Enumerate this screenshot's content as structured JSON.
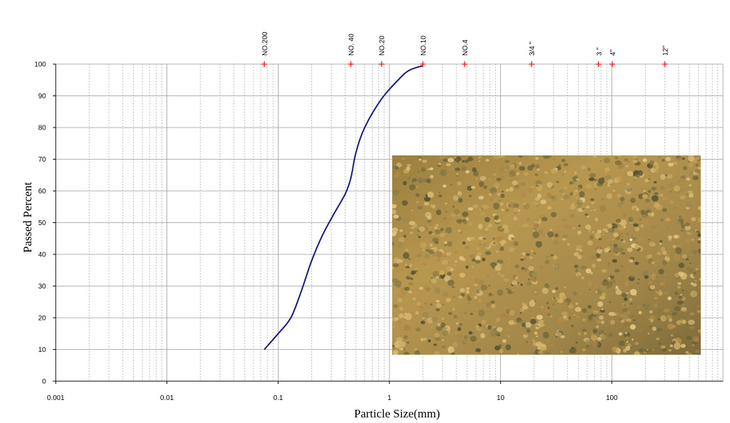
{
  "chart_data": {
    "type": "line",
    "title": "",
    "xlabel": "Particle Size(mm)",
    "ylabel": "Passed Percent",
    "x_scale": "log",
    "xlim": [
      0.001,
      1000
    ],
    "ylim": [
      0,
      100
    ],
    "x_ticks": [
      {
        "value": 0.001,
        "label": "0.001"
      },
      {
        "value": 0.01,
        "label": "0.01"
      },
      {
        "value": 0.1,
        "label": "0.1"
      },
      {
        "value": 1,
        "label": "1"
      },
      {
        "value": 10,
        "label": "10"
      },
      {
        "value": 100,
        "label": "100"
      }
    ],
    "y_ticks": [
      0,
      10,
      20,
      30,
      40,
      50,
      60,
      70,
      80,
      90,
      100
    ],
    "grid": true,
    "series": [
      {
        "color": "#1a1a80",
        "points": [
          {
            "x": 0.075,
            "y": 10
          },
          {
            "x": 0.1,
            "y": 15
          },
          {
            "x": 0.13,
            "y": 20
          },
          {
            "x": 0.16,
            "y": 28
          },
          {
            "x": 0.2,
            "y": 38
          },
          {
            "x": 0.25,
            "y": 46
          },
          {
            "x": 0.32,
            "y": 53
          },
          {
            "x": 0.4,
            "y": 59
          },
          {
            "x": 0.45,
            "y": 64
          },
          {
            "x": 0.5,
            "y": 72
          },
          {
            "x": 0.6,
            "y": 80
          },
          {
            "x": 0.85,
            "y": 89
          },
          {
            "x": 1.2,
            "y": 95
          },
          {
            "x": 1.5,
            "y": 98
          },
          {
            "x": 2.0,
            "y": 99.5
          }
        ]
      }
    ],
    "sieves": [
      {
        "label": "NO.200",
        "size": 0.075
      },
      {
        "label": "NO. 40",
        "size": 0.45
      },
      {
        "label": "NO.20",
        "size": 0.85
      },
      {
        "label": "NO.10",
        "size": 2.0
      },
      {
        "label": "NO.4",
        "size": 4.75
      },
      {
        "label": "3/4 \"",
        "size": 19
      },
      {
        "label": "3 \"",
        "size": 76
      },
      {
        "label": "4\"",
        "size": 101
      },
      {
        "label": "12\"",
        "size": 300
      }
    ],
    "sieve_marker_color": "#ff0000",
    "photo_inset": "sand-grains-photo"
  }
}
